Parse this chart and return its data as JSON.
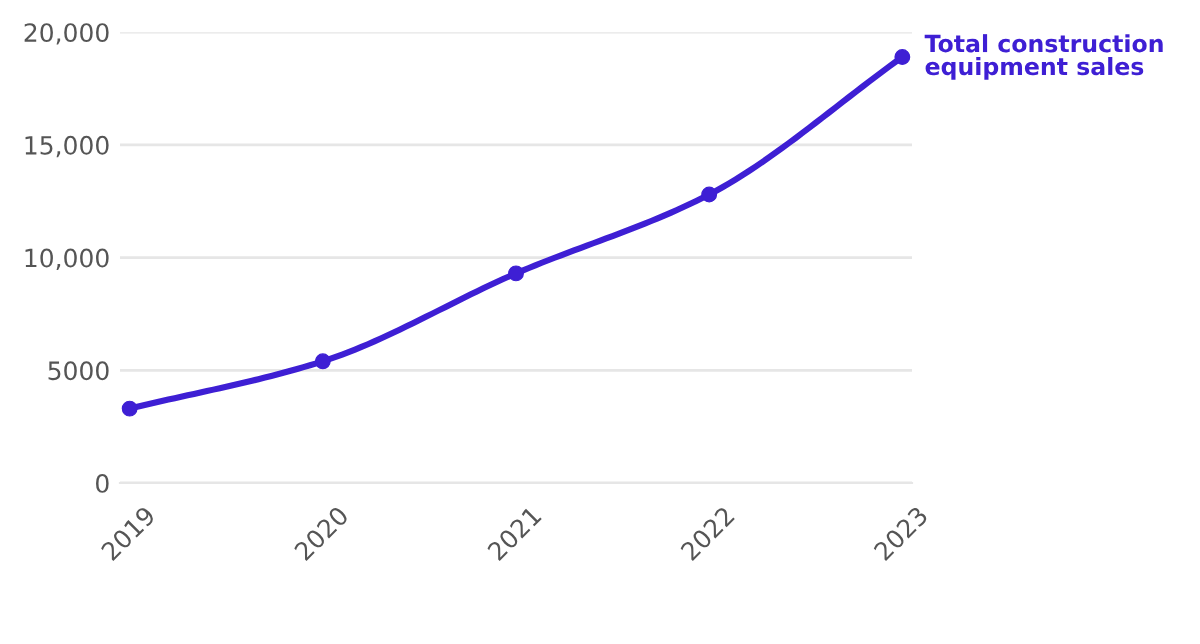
{
  "chart_data": {
    "type": "line",
    "categories": [
      "2019",
      "2020",
      "2021",
      "2022",
      "2023"
    ],
    "series": [
      {
        "name": "Total construction equipment sales",
        "color": "#3e1fd4",
        "values": [
          3300,
          5400,
          9300,
          12800,
          18900
        ]
      }
    ],
    "ylim": [
      0,
      20000
    ],
    "yticks": [
      0,
      {
        "value": 5000,
        "label": "5000"
      },
      {
        "value": 10000,
        "label": "10,000"
      },
      {
        "value": 15000,
        "label": "15,000"
      },
      {
        "value": 20000,
        "label": "20,000"
      }
    ],
    "grid": "y",
    "marker": "circle",
    "line_style": "solid",
    "legend": false
  }
}
